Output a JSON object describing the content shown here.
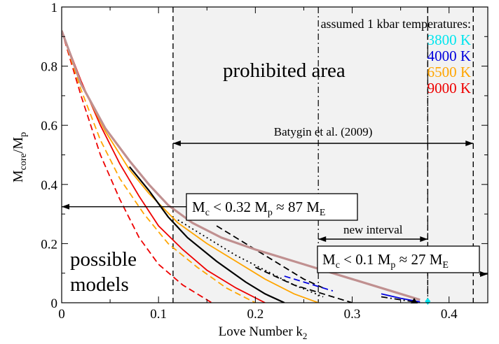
{
  "chart_data": {
    "type": "line",
    "xlabel_main": "Love Number k",
    "xlabel_sub": "2",
    "ylabel": {
      "a": "M",
      "a_sub": "core",
      "b": "/M",
      "b_sub": "p"
    },
    "xlim": [
      0,
      0.44
    ],
    "ylim": [
      0,
      1
    ],
    "x_ticks": [
      "0",
      "0.1",
      "0.2",
      "0.3",
      "0.4"
    ],
    "x_tick_values": [
      0,
      0.1,
      0.2,
      0.3,
      0.4
    ],
    "y_ticks": [
      "0",
      "0.2",
      "0.4",
      "0.6",
      "0.8",
      "1"
    ],
    "y_tick_values": [
      0,
      0.2,
      0.4,
      0.6,
      0.8,
      1
    ],
    "legend_title": "assumed 1 kbar temperatures:",
    "legend": [
      {
        "label": "3800 K",
        "color": "#00e5ee"
      },
      {
        "label": "4000 K",
        "color": "#0000dd"
      },
      {
        "label": "6500 K",
        "color": "#ffa500"
      },
      {
        "label": "9000 K",
        "color": "#ee0000"
      }
    ],
    "legend_placement": "top-right",
    "prohibited_label": "prohibited area",
    "possible_label_1": "possible",
    "possible_label_2": "models",
    "batygin_label": "Batygin et al. (2009)",
    "batygin_range": [
      0.115,
      0.425
    ],
    "new_interval_label": "new interval",
    "new_interval_range": [
      0.265,
      0.378
    ],
    "box1": {
      "text": "M",
      "sub1": "c",
      "mid": " < 0.32 M",
      "sub2": "p",
      "tail": " ≈ 87 M",
      "sub3": "E",
      "arrow_x": [
        0.0,
        0.133
      ],
      "arrow_y": 0.32
    },
    "box2": {
      "text": "M",
      "sub1": "c",
      "mid": " < 0.1 M",
      "sub2": "p",
      "tail": " ≈ 27 M",
      "sub3": "E",
      "arrow_x": [
        0.115,
        0.44
      ],
      "arrow_y": 0.1
    },
    "vlines_dashed": [
      0.115,
      0.378,
      0.425
    ],
    "vlines_dashdot": [
      0.265,
      0.378
    ],
    "boundary": {
      "color": "#c09090",
      "x": [
        0.0,
        0.02,
        0.045,
        0.07,
        0.09,
        0.11,
        0.135,
        0.165,
        0.2,
        0.25,
        0.3,
        0.34,
        0.37
      ],
      "y": [
        0.92,
        0.74,
        0.59,
        0.48,
        0.4,
        0.33,
        0.27,
        0.22,
        0.18,
        0.13,
        0.08,
        0.04,
        0.01
      ]
    },
    "series": [
      {
        "color": "#ee0000",
        "dash": "solid",
        "x": [
          0.0,
          0.02,
          0.04,
          0.06,
          0.08,
          0.1,
          0.125,
          0.15,
          0.18,
          0.21
        ],
        "y": [
          0.92,
          0.75,
          0.6,
          0.47,
          0.36,
          0.26,
          0.18,
          0.11,
          0.05,
          0.0
        ]
      },
      {
        "color": "#ee0000",
        "dash": "dashed",
        "x": [
          0.0,
          0.02,
          0.04,
          0.06,
          0.08,
          0.1,
          0.125,
          0.155
        ],
        "y": [
          0.92,
          0.7,
          0.5,
          0.35,
          0.22,
          0.13,
          0.06,
          0.0
        ]
      },
      {
        "color": "#ffa500",
        "dash": "solid",
        "x": [
          0.0,
          0.02,
          0.045,
          0.07,
          0.09,
          0.12,
          0.15,
          0.18,
          0.21,
          0.24,
          0.265
        ],
        "y": [
          0.92,
          0.74,
          0.58,
          0.45,
          0.37,
          0.27,
          0.2,
          0.14,
          0.08,
          0.03,
          0.0
        ]
      },
      {
        "color": "#ffa500",
        "dash": "dashed",
        "x": [
          0.0,
          0.02,
          0.04,
          0.06,
          0.085,
          0.11,
          0.14,
          0.17,
          0.2
        ],
        "y": [
          0.92,
          0.72,
          0.55,
          0.42,
          0.3,
          0.2,
          0.12,
          0.05,
          0.0
        ]
      },
      {
        "color": "#000000",
        "dash": "solid",
        "x": [
          0.07,
          0.09,
          0.11,
          0.13,
          0.16,
          0.19,
          0.21,
          0.23
        ],
        "y": [
          0.46,
          0.38,
          0.29,
          0.22,
          0.14,
          0.07,
          0.03,
          0.0
        ]
      },
      {
        "color": "#000000",
        "dash": "dashed",
        "x": [
          0.2,
          0.24,
          0.27,
          0.3
        ],
        "y": [
          0.12,
          0.06,
          0.03,
          0.0
        ]
      },
      {
        "color": "#000000",
        "dash": "dotted",
        "x": [
          0.12,
          0.15,
          0.18,
          0.21,
          0.24,
          0.27
        ],
        "y": [
          0.28,
          0.22,
          0.16,
          0.11,
          0.06,
          0.02
        ]
      },
      {
        "color": "#000000",
        "dash": "dashed",
        "x": [
          0.16,
          0.19,
          0.22,
          0.25,
          0.27
        ],
        "y": [
          0.26,
          0.2,
          0.14,
          0.08,
          0.05
        ]
      },
      {
        "color": "#0000dd",
        "dash": "dashed",
        "x": [
          0.23,
          0.26,
          0.28
        ],
        "y": [
          0.09,
          0.06,
          0.04
        ]
      },
      {
        "color": "#000000",
        "dash": "dashdot",
        "x": [
          0.33,
          0.35,
          0.37
        ],
        "y": [
          0.02,
          0.01,
          0.0
        ]
      },
      {
        "color": "#0000dd",
        "dash": "solid",
        "x": [
          0.33,
          0.35,
          0.37
        ],
        "y": [
          0.03,
          0.015,
          0.003
        ]
      }
    ],
    "markers": [
      {
        "shape": "triangle",
        "color": "#000000",
        "x": 0.364,
        "y": 0.0
      },
      {
        "shape": "diamond",
        "color": "#00e5ee",
        "x": 0.378,
        "y": 0.0
      }
    ]
  }
}
